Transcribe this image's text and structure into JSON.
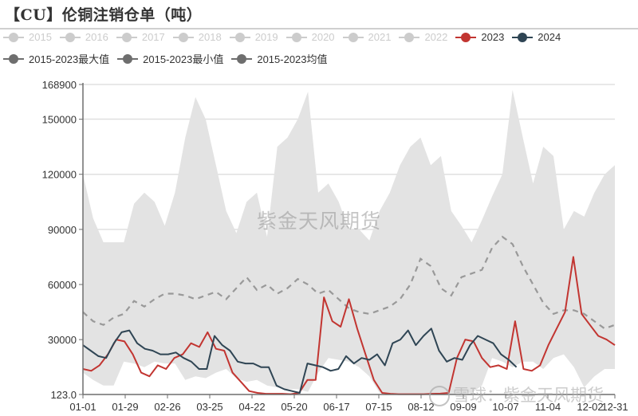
{
  "header": {
    "title": "【CU】伦铜注销仓单（吨）"
  },
  "legend": {
    "row1": [
      {
        "label": "2015",
        "color": "#cccccc",
        "text_color": "#cccccc",
        "active": false
      },
      {
        "label": "2016",
        "color": "#cccccc",
        "text_color": "#cccccc",
        "active": false
      },
      {
        "label": "2017",
        "color": "#cccccc",
        "text_color": "#cccccc",
        "active": false
      },
      {
        "label": "2018",
        "color": "#cccccc",
        "text_color": "#cccccc",
        "active": false
      },
      {
        "label": "2019",
        "color": "#cccccc",
        "text_color": "#cccccc",
        "active": false
      },
      {
        "label": "2020",
        "color": "#cccccc",
        "text_color": "#cccccc",
        "active": false
      },
      {
        "label": "2021",
        "color": "#cccccc",
        "text_color": "#cccccc",
        "active": false
      },
      {
        "label": "2022",
        "color": "#cccccc",
        "text_color": "#cccccc",
        "active": false
      },
      {
        "label": "2023",
        "color": "#c23531",
        "text_color": "#333333",
        "active": true
      },
      {
        "label": "2024",
        "color": "#2f4554",
        "text_color": "#333333",
        "active": true
      }
    ],
    "row2": [
      {
        "label": "2015-2023最大值",
        "color": "#6e6e6e",
        "text_color": "#333333",
        "active": true
      },
      {
        "label": "2015-2023最小值",
        "color": "#6e6e6e",
        "text_color": "#333333",
        "active": true
      },
      {
        "label": "2015-2023均值",
        "color": "#6e6e6e",
        "text_color": "#333333",
        "active": true
      }
    ]
  },
  "watermarks": {
    "center": "紫金天风期货",
    "corner": "雪球：紫金天风期货"
  },
  "colors": {
    "series_2023": "#c23531",
    "series_2024": "#2f4554",
    "band_fill": "#e3e3e3",
    "mean_line": "#999999",
    "axis": "#6e6e6e",
    "grid": "#e0e0e0"
  },
  "chart_data": {
    "type": "line",
    "title": "【CU】伦铜注销仓单（吨）",
    "xlabel": "",
    "ylabel": "",
    "ylim": [
      123.0,
      168900
    ],
    "y_ticks": [
      "123.0",
      "30000",
      "60000",
      "90000",
      "120000",
      "150000",
      "168900"
    ],
    "x_ticks": [
      "01-01",
      "01-29",
      "02-26",
      "03-25",
      "04-22",
      "05-20",
      "06-17",
      "07-15",
      "08-12",
      "09-09",
      "10-07",
      "11-04",
      "12-02",
      "12-31"
    ],
    "grid": true,
    "legend_position": "top",
    "band": {
      "name_upper": "2015-2023最大值",
      "name_lower": "2015-2023最小值",
      "x": [
        "01-01",
        "01-08",
        "01-15",
        "01-22",
        "01-29",
        "02-05",
        "02-12",
        "02-19",
        "02-26",
        "03-05",
        "03-12",
        "03-19",
        "03-25",
        "04-01",
        "04-08",
        "04-15",
        "04-22",
        "04-29",
        "05-06",
        "05-13",
        "05-20",
        "05-27",
        "06-03",
        "06-10",
        "06-17",
        "06-24",
        "07-01",
        "07-08",
        "07-15",
        "07-22",
        "07-29",
        "08-05",
        "08-12",
        "08-19",
        "08-26",
        "09-02",
        "09-09",
        "09-16",
        "09-23",
        "09-30",
        "10-07",
        "10-14",
        "10-21",
        "10-28",
        "11-04",
        "11-11",
        "11-18",
        "11-25",
        "12-02",
        "12-09",
        "12-16",
        "12-23",
        "12-31"
      ],
      "upper": [
        120000,
        96000,
        83000,
        83000,
        83000,
        104000,
        110000,
        105000,
        92000,
        110000,
        140000,
        162000,
        150000,
        125000,
        100000,
        88000,
        105000,
        110000,
        86000,
        135000,
        140000,
        150000,
        165000,
        110000,
        115000,
        105000,
        90000,
        90000,
        84000,
        100000,
        110000,
        125000,
        135000,
        140000,
        125000,
        130000,
        100000,
        92000,
        83000,
        95000,
        108000,
        120000,
        166000,
        140000,
        115000,
        135000,
        130000,
        90000,
        100000,
        97000,
        110000,
        120000,
        125000
      ],
      "lower": [
        12000,
        8000,
        5000,
        5000,
        18000,
        17000,
        15000,
        18000,
        17000,
        17000,
        8000,
        10000,
        9000,
        12000,
        14000,
        9000,
        7000,
        8000,
        5000,
        4000,
        3000,
        3000,
        1500,
        12000,
        20000,
        19000,
        18000,
        15000,
        10000,
        1000,
        500,
        300,
        300,
        200,
        200,
        200,
        200,
        300,
        1000,
        5000,
        20000,
        18000,
        15000,
        18000,
        18000,
        14000,
        20000,
        22000,
        15000,
        4000,
        10000,
        14000,
        14000
      ]
    },
    "series": [
      {
        "name": "2015-2023均值",
        "style": "dashed",
        "values": [
          45000,
          40000,
          38000,
          42000,
          44000,
          51000,
          48000,
          52000,
          55000,
          55000,
          54000,
          52000,
          54000,
          56000,
          52000,
          58000,
          64000,
          57000,
          60000,
          55000,
          58000,
          63000,
          60000,
          55000,
          57000,
          52000,
          47000,
          45000,
          44000,
          46000,
          48000,
          52000,
          60000,
          74000,
          70000,
          58000,
          54000,
          64000,
          66000,
          68000,
          80000,
          86000,
          82000,
          70000,
          60000,
          50000,
          44000,
          46000,
          46000,
          44000,
          40000,
          36000,
          38000
        ]
      },
      {
        "name": "2023",
        "values": [
          14000,
          13000,
          16000,
          22000,
          30000,
          29000,
          22000,
          12000,
          10000,
          16000,
          14000,
          20000,
          22000,
          28000,
          26000,
          34000,
          25000,
          24000,
          12000,
          7000,
          2000,
          1000,
          500,
          500,
          500,
          300,
          1000,
          8000,
          8000,
          53000,
          40000,
          37000,
          52000,
          36000,
          22000,
          8000,
          1000,
          500,
          300,
          300,
          300,
          300,
          500,
          600,
          1000,
          20000,
          30000,
          29000,
          20000,
          15000,
          16000,
          14000,
          40000,
          14000,
          13000,
          16000,
          27000,
          36000,
          45000,
          75000,
          44000,
          38000,
          32000,
          30000,
          27000
        ]
      },
      {
        "name": "2024",
        "values": [
          27000,
          24000,
          21000,
          20000,
          28000,
          34000,
          35000,
          28000,
          25000,
          24000,
          22000,
          22000,
          23000,
          20000,
          18000,
          14000,
          14000,
          32000,
          27000,
          24000,
          18000,
          17000,
          17000,
          15000,
          15000,
          5000,
          3000,
          2000,
          1000,
          17000,
          16000,
          15000,
          13000,
          14000,
          21000,
          17000,
          20000,
          19000,
          22000,
          16000,
          28000,
          30000,
          35000,
          27000,
          32000,
          36000,
          24000,
          18000,
          20000,
          19000,
          27000,
          32000,
          30000,
          28000,
          22000,
          19000,
          15000
        ]
      }
    ],
    "annotations": [
      "紫金天风期货",
      "雪球：紫金天风期货"
    ]
  }
}
